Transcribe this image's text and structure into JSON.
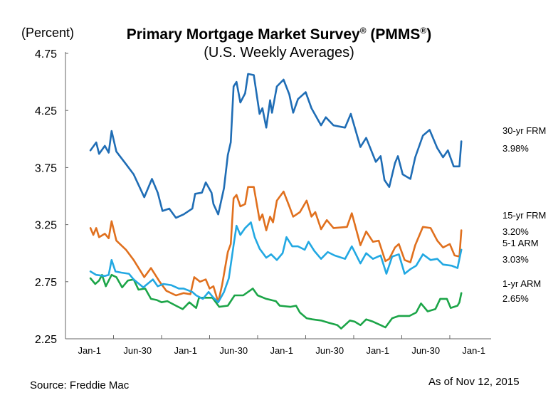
{
  "title": "Primary Mortgage Market Survey",
  "title_reg1": "®",
  "title_paren_open": " (PMMS",
  "title_reg2": "®",
  "title_paren_close": ")",
  "subtitle": "(U.S. Weekly Averages)",
  "unit_label": "(Percent)",
  "source": "Source: Freddie Mac",
  "as_of": "As of Nov 12, 2015",
  "chart_data": {
    "type": "line",
    "title": "Primary Mortgage Market Survey® (PMMS®) (U.S. Weekly Averages)",
    "ylabel": "(Percent)",
    "xlabel": "",
    "ylim": [
      2.25,
      4.75
    ],
    "xlim": [
      2011.75,
      2016.18
    ],
    "yticks": [
      "4.75",
      "4.25",
      "3.75",
      "3.25",
      "2.75",
      "2.25"
    ],
    "ytick_values": [
      4.75,
      4.25,
      3.75,
      3.25,
      2.75,
      2.25
    ],
    "xticks": [
      "Jan-1",
      "Jun-30",
      "Jan-1",
      "Jun-30",
      "Jan-1",
      "Jun-30",
      "Jan-1",
      "Jun-30",
      "Jan-1"
    ],
    "xtick_values": [
      2012,
      2012.5,
      2013,
      2013.5,
      2014,
      2014.5,
      2015,
      2015.5,
      2016
    ],
    "grid": false,
    "legend": "right",
    "series": [
      {
        "name": "30-yr FRM",
        "last_label": "3.98%",
        "color": "#1f6db5",
        "points": [
          [
            2012.01,
            3.9
          ],
          [
            2012.07,
            3.97
          ],
          [
            2012.1,
            3.87
          ],
          [
            2012.16,
            3.94
          ],
          [
            2012.2,
            3.88
          ],
          [
            2012.23,
            4.07
          ],
          [
            2012.28,
            3.89
          ],
          [
            2012.38,
            3.78
          ],
          [
            2012.46,
            3.69
          ],
          [
            2012.57,
            3.49
          ],
          [
            2012.65,
            3.65
          ],
          [
            2012.71,
            3.53
          ],
          [
            2012.76,
            3.37
          ],
          [
            2012.83,
            3.39
          ],
          [
            2012.9,
            3.31
          ],
          [
            2012.98,
            3.34
          ],
          [
            2013.07,
            3.39
          ],
          [
            2013.1,
            3.52
          ],
          [
            2013.17,
            3.53
          ],
          [
            2013.21,
            3.62
          ],
          [
            2013.27,
            3.53
          ],
          [
            2013.29,
            3.43
          ],
          [
            2013.34,
            3.34
          ],
          [
            2013.4,
            3.57
          ],
          [
            2013.44,
            3.86
          ],
          [
            2013.47,
            3.97
          ],
          [
            2013.5,
            4.46
          ],
          [
            2013.53,
            4.5
          ],
          [
            2013.57,
            4.32
          ],
          [
            2013.62,
            4.4
          ],
          [
            2013.65,
            4.57
          ],
          [
            2013.71,
            4.56
          ],
          [
            2013.77,
            4.22
          ],
          [
            2013.8,
            4.27
          ],
          [
            2013.84,
            4.1
          ],
          [
            2013.88,
            4.34
          ],
          [
            2013.9,
            4.23
          ],
          [
            2013.95,
            4.46
          ],
          [
            2014.02,
            4.52
          ],
          [
            2014.08,
            4.39
          ],
          [
            2014.12,
            4.23
          ],
          [
            2014.17,
            4.35
          ],
          [
            2014.25,
            4.41
          ],
          [
            2014.31,
            4.27
          ],
          [
            2014.41,
            4.12
          ],
          [
            2014.46,
            4.19
          ],
          [
            2014.54,
            4.12
          ],
          [
            2014.66,
            4.1
          ],
          [
            2014.72,
            4.22
          ],
          [
            2014.82,
            3.93
          ],
          [
            2014.88,
            4.01
          ],
          [
            2014.98,
            3.8
          ],
          [
            2015.03,
            3.85
          ],
          [
            2015.07,
            3.64
          ],
          [
            2015.12,
            3.58
          ],
          [
            2015.18,
            3.79
          ],
          [
            2015.21,
            3.85
          ],
          [
            2015.26,
            3.69
          ],
          [
            2015.34,
            3.65
          ],
          [
            2015.39,
            3.84
          ],
          [
            2015.47,
            4.03
          ],
          [
            2015.54,
            4.08
          ],
          [
            2015.62,
            3.92
          ],
          [
            2015.68,
            3.84
          ],
          [
            2015.73,
            3.9
          ],
          [
            2015.79,
            3.76
          ],
          [
            2015.85,
            3.76
          ],
          [
            2015.87,
            3.98
          ]
        ]
      },
      {
        "name": "15-yr FRM",
        "last_label": "3.20%",
        "color": "#e0701e",
        "points": [
          [
            2012.01,
            3.22
          ],
          [
            2012.04,
            3.16
          ],
          [
            2012.07,
            3.22
          ],
          [
            2012.1,
            3.14
          ],
          [
            2012.16,
            3.17
          ],
          [
            2012.2,
            3.13
          ],
          [
            2012.23,
            3.28
          ],
          [
            2012.28,
            3.11
          ],
          [
            2012.38,
            3.03
          ],
          [
            2012.46,
            2.94
          ],
          [
            2012.57,
            2.79
          ],
          [
            2012.64,
            2.87
          ],
          [
            2012.73,
            2.75
          ],
          [
            2012.8,
            2.67
          ],
          [
            2012.9,
            2.63
          ],
          [
            2012.98,
            2.65
          ],
          [
            2013.05,
            2.64
          ],
          [
            2013.09,
            2.79
          ],
          [
            2013.15,
            2.75
          ],
          [
            2013.21,
            2.77
          ],
          [
            2013.25,
            2.69
          ],
          [
            2013.29,
            2.71
          ],
          [
            2013.34,
            2.57
          ],
          [
            2013.38,
            2.72
          ],
          [
            2013.44,
            3.01
          ],
          [
            2013.47,
            3.08
          ],
          [
            2013.5,
            3.48
          ],
          [
            2013.53,
            3.51
          ],
          [
            2013.57,
            3.41
          ],
          [
            2013.62,
            3.43
          ],
          [
            2013.65,
            3.58
          ],
          [
            2013.71,
            3.58
          ],
          [
            2013.77,
            3.29
          ],
          [
            2013.8,
            3.34
          ],
          [
            2013.84,
            3.2
          ],
          [
            2013.88,
            3.32
          ],
          [
            2013.91,
            3.27
          ],
          [
            2013.95,
            3.46
          ],
          [
            2014.02,
            3.54
          ],
          [
            2014.08,
            3.41
          ],
          [
            2014.12,
            3.32
          ],
          [
            2014.19,
            3.36
          ],
          [
            2014.26,
            3.46
          ],
          [
            2014.31,
            3.32
          ],
          [
            2014.35,
            3.36
          ],
          [
            2014.41,
            3.21
          ],
          [
            2014.47,
            3.29
          ],
          [
            2014.54,
            3.22
          ],
          [
            2014.68,
            3.23
          ],
          [
            2014.73,
            3.35
          ],
          [
            2014.82,
            3.07
          ],
          [
            2014.88,
            3.19
          ],
          [
            2014.95,
            3.1
          ],
          [
            2015.01,
            3.11
          ],
          [
            2015.08,
            2.93
          ],
          [
            2015.12,
            2.95
          ],
          [
            2015.18,
            3.05
          ],
          [
            2015.22,
            3.08
          ],
          [
            2015.28,
            2.94
          ],
          [
            2015.34,
            2.92
          ],
          [
            2015.39,
            3.07
          ],
          [
            2015.47,
            3.23
          ],
          [
            2015.55,
            3.22
          ],
          [
            2015.62,
            3.11
          ],
          [
            2015.68,
            3.05
          ],
          [
            2015.75,
            3.08
          ],
          [
            2015.8,
            2.98
          ],
          [
            2015.85,
            2.97
          ],
          [
            2015.87,
            3.2
          ]
        ]
      },
      {
        "name": "5-1 ARM",
        "last_label": "3.03%",
        "color": "#22a8e2",
        "points": [
          [
            2012.01,
            2.84
          ],
          [
            2012.07,
            2.81
          ],
          [
            2012.16,
            2.8
          ],
          [
            2012.2,
            2.81
          ],
          [
            2012.23,
            2.94
          ],
          [
            2012.27,
            2.84
          ],
          [
            2012.33,
            2.83
          ],
          [
            2012.41,
            2.82
          ],
          [
            2012.46,
            2.77
          ],
          [
            2012.56,
            2.7
          ],
          [
            2012.66,
            2.77
          ],
          [
            2012.71,
            2.71
          ],
          [
            2012.77,
            2.73
          ],
          [
            2012.85,
            2.72
          ],
          [
            2012.93,
            2.69
          ],
          [
            2012.98,
            2.69
          ],
          [
            2013.07,
            2.66
          ],
          [
            2013.11,
            2.63
          ],
          [
            2013.18,
            2.6
          ],
          [
            2013.24,
            2.66
          ],
          [
            2013.29,
            2.61
          ],
          [
            2013.34,
            2.57
          ],
          [
            2013.4,
            2.66
          ],
          [
            2013.45,
            2.78
          ],
          [
            2013.5,
            3.07
          ],
          [
            2013.53,
            3.24
          ],
          [
            2013.57,
            3.16
          ],
          [
            2013.62,
            3.22
          ],
          [
            2013.68,
            3.27
          ],
          [
            2013.72,
            3.14
          ],
          [
            2013.77,
            3.04
          ],
          [
            2013.84,
            2.96
          ],
          [
            2013.89,
            2.99
          ],
          [
            2013.95,
            2.94
          ],
          [
            2014.01,
            3.0
          ],
          [
            2014.05,
            3.14
          ],
          [
            2014.11,
            3.06
          ],
          [
            2014.17,
            3.06
          ],
          [
            2014.24,
            3.03
          ],
          [
            2014.28,
            3.1
          ],
          [
            2014.34,
            3.02
          ],
          [
            2014.41,
            2.95
          ],
          [
            2014.48,
            3.01
          ],
          [
            2014.55,
            2.98
          ],
          [
            2014.66,
            2.95
          ],
          [
            2014.73,
            3.06
          ],
          [
            2014.82,
            2.91
          ],
          [
            2014.88,
            3.0
          ],
          [
            2014.95,
            2.95
          ],
          [
            2015.03,
            2.98
          ],
          [
            2015.09,
            2.82
          ],
          [
            2015.15,
            2.97
          ],
          [
            2015.22,
            2.99
          ],
          [
            2015.28,
            2.82
          ],
          [
            2015.34,
            2.86
          ],
          [
            2015.4,
            2.89
          ],
          [
            2015.47,
            2.99
          ],
          [
            2015.55,
            2.94
          ],
          [
            2015.62,
            2.95
          ],
          [
            2015.68,
            2.9
          ],
          [
            2015.77,
            2.89
          ],
          [
            2015.83,
            2.87
          ],
          [
            2015.87,
            3.03
          ]
        ]
      },
      {
        "name": "1-yr ARM",
        "last_label": "2.65%",
        "color": "#1ca548",
        "points": [
          [
            2012.01,
            2.78
          ],
          [
            2012.06,
            2.73
          ],
          [
            2012.1,
            2.76
          ],
          [
            2012.13,
            2.81
          ],
          [
            2012.17,
            2.71
          ],
          [
            2012.23,
            2.81
          ],
          [
            2012.28,
            2.79
          ],
          [
            2012.34,
            2.7
          ],
          [
            2012.4,
            2.76
          ],
          [
            2012.46,
            2.77
          ],
          [
            2012.51,
            2.68
          ],
          [
            2012.58,
            2.69
          ],
          [
            2012.64,
            2.6
          ],
          [
            2012.7,
            2.59
          ],
          [
            2012.75,
            2.57
          ],
          [
            2012.81,
            2.58
          ],
          [
            2012.9,
            2.54
          ],
          [
            2012.97,
            2.51
          ],
          [
            2013.04,
            2.57
          ],
          [
            2013.11,
            2.52
          ],
          [
            2013.14,
            2.61
          ],
          [
            2013.21,
            2.61
          ],
          [
            2013.28,
            2.61
          ],
          [
            2013.35,
            2.53
          ],
          [
            2013.44,
            2.54
          ],
          [
            2013.51,
            2.63
          ],
          [
            2013.6,
            2.63
          ],
          [
            2013.7,
            2.69
          ],
          [
            2013.75,
            2.63
          ],
          [
            2013.84,
            2.6
          ],
          [
            2013.94,
            2.58
          ],
          [
            2013.98,
            2.54
          ],
          [
            2014.09,
            2.53
          ],
          [
            2014.15,
            2.54
          ],
          [
            2014.19,
            2.48
          ],
          [
            2014.26,
            2.43
          ],
          [
            2014.32,
            2.42
          ],
          [
            2014.41,
            2.41
          ],
          [
            2014.49,
            2.39
          ],
          [
            2014.58,
            2.37
          ],
          [
            2014.62,
            2.34
          ],
          [
            2014.71,
            2.41
          ],
          [
            2014.76,
            2.4
          ],
          [
            2014.82,
            2.37
          ],
          [
            2014.88,
            2.42
          ],
          [
            2014.95,
            2.4
          ],
          [
            2015.03,
            2.37
          ],
          [
            2015.08,
            2.35
          ],
          [
            2015.15,
            2.43
          ],
          [
            2015.22,
            2.45
          ],
          [
            2015.33,
            2.45
          ],
          [
            2015.4,
            2.48
          ],
          [
            2015.45,
            2.56
          ],
          [
            2015.52,
            2.49
          ],
          [
            2015.6,
            2.51
          ],
          [
            2015.65,
            2.6
          ],
          [
            2015.72,
            2.6
          ],
          [
            2015.76,
            2.52
          ],
          [
            2015.83,
            2.54
          ],
          [
            2015.85,
            2.57
          ],
          [
            2015.87,
            2.65
          ]
        ]
      }
    ]
  }
}
